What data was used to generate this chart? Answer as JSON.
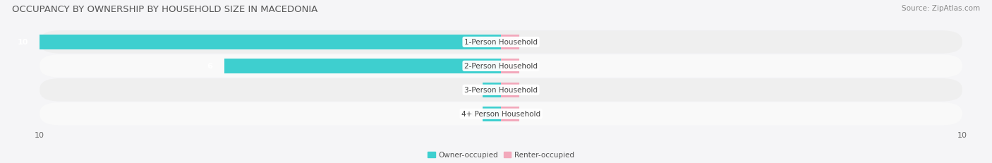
{
  "title": "OCCUPANCY BY OWNERSHIP BY HOUSEHOLD SIZE IN MACEDONIA",
  "source": "Source: ZipAtlas.com",
  "categories": [
    "1-Person Household",
    "2-Person Household",
    "3-Person Household",
    "4+ Person Household"
  ],
  "owner_values": [
    10,
    6,
    0,
    0
  ],
  "renter_values": [
    0,
    0,
    0,
    0
  ],
  "owner_color": "#3ECFCF",
  "renter_color": "#F2A8BB",
  "row_bg_even": "#EFEFEF",
  "row_bg_odd": "#F9F9F9",
  "bg_color": "#F5F5F7",
  "xlim": [
    -10,
    10
  ],
  "xticks_left": -10,
  "xticks_right": 10,
  "title_fontsize": 9.5,
  "source_fontsize": 7.5,
  "label_fontsize": 7.5,
  "value_fontsize": 8,
  "tick_fontsize": 8,
  "legend_owner": "Owner-occupied",
  "legend_renter": "Renter-occupied",
  "bar_height": 0.62,
  "min_stub": 0.4
}
